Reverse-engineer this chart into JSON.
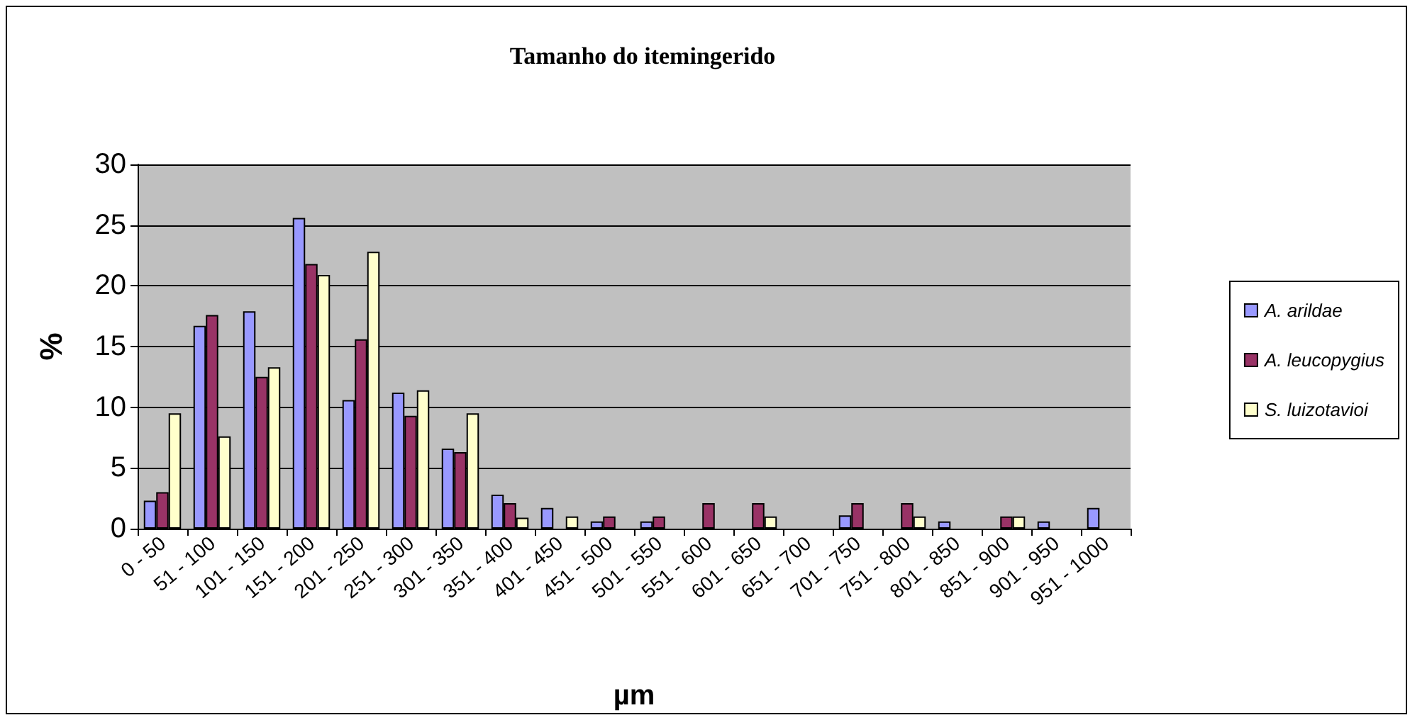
{
  "chart_data": {
    "type": "bar",
    "title": "Tamanho do itemingerido",
    "xlabel": "µm",
    "ylabel": "%",
    "categories": [
      "0 - 50",
      "51 - 100",
      "101 - 150",
      "151 - 200",
      "201 - 250",
      "251 - 300",
      "301 - 350",
      "351 - 400",
      "401 - 450",
      "451 - 500",
      "501 - 550",
      "551 - 600",
      "601 - 650",
      "651 - 700",
      "701 - 750",
      "751 - 800",
      "801 - 850",
      "851 - 900",
      "901 - 950",
      "951 - 1000"
    ],
    "series": [
      {
        "name": "A. arildae",
        "color": "#9999ff",
        "values": [
          2.3,
          16.7,
          17.9,
          25.6,
          10.6,
          11.2,
          6.6,
          2.8,
          1.7,
          0.6,
          0.6,
          null,
          null,
          null,
          1.1,
          null,
          0.6,
          null,
          0.6,
          1.7
        ]
      },
      {
        "name": "A. leucopygius",
        "color": "#993366",
        "values": [
          3.0,
          17.6,
          12.5,
          21.8,
          15.6,
          9.3,
          6.3,
          2.1,
          null,
          1.0,
          1.0,
          2.1,
          2.1,
          null,
          2.1,
          2.1,
          null,
          1.0,
          null,
          null
        ]
      },
      {
        "name": "S. luizotavioi",
        "color": "#ffffcc",
        "values": [
          9.5,
          7.6,
          13.3,
          20.9,
          22.8,
          11.4,
          9.5,
          0.9,
          1.0,
          null,
          null,
          null,
          1.0,
          null,
          null,
          1.0,
          null,
          1.0,
          null,
          null
        ]
      }
    ],
    "ylim": [
      0,
      30
    ],
    "yticks": [
      0,
      5,
      10,
      15,
      20,
      25,
      30
    ],
    "grid": "y",
    "legend": "right"
  }
}
